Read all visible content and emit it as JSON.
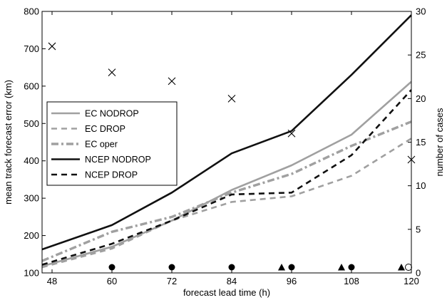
{
  "chart_data": {
    "type": "line",
    "xlabel": "forecast lead time (h)",
    "ylabel": "mean track forecast error (km)",
    "y2label": "number of cases",
    "xlim": [
      46,
      120
    ],
    "ylim": [
      100,
      800
    ],
    "y2lim": [
      0,
      30
    ],
    "x_ticks": [
      48,
      60,
      72,
      84,
      96,
      108,
      120
    ],
    "y_ticks": [
      100,
      200,
      300,
      400,
      500,
      600,
      700,
      800
    ],
    "y2_ticks": [
      0,
      5,
      10,
      15,
      20,
      25,
      30
    ],
    "grid": false,
    "legend": "middle-left",
    "series": [
      {
        "name": "EC NODROP",
        "style": "solid",
        "color": "#a0a0a0",
        "x": [
          46,
          60,
          72,
          84,
          96,
          108,
          120
        ],
        "y": [
          118,
          170,
          240,
          322,
          388,
          470,
          612
        ]
      },
      {
        "name": "EC DROP",
        "style": "dashed",
        "color": "#a0a0a0",
        "x": [
          46,
          60,
          72,
          84,
          96,
          108,
          120
        ],
        "y": [
          115,
          165,
          240,
          290,
          305,
          360,
          460
        ]
      },
      {
        "name": "EC oper",
        "style": "dashdot",
        "color": "#a0a0a0",
        "x": [
          46,
          60,
          72,
          84,
          96,
          108,
          120
        ],
        "y": [
          132,
          210,
          250,
          315,
          365,
          440,
          505
        ]
      },
      {
        "name": "NCEP NODROP",
        "style": "solid",
        "color": "#111111",
        "x": [
          46,
          60,
          72,
          84,
          96,
          108,
          120
        ],
        "y": [
          163,
          228,
          315,
          420,
          480,
          630,
          790
        ]
      },
      {
        "name": "NCEP DROP",
        "style": "dashed",
        "color": "#111111",
        "x": [
          46,
          60,
          72,
          84,
          96,
          108,
          120
        ],
        "y": [
          122,
          178,
          240,
          310,
          315,
          415,
          590
        ]
      }
    ],
    "cases": {
      "axis": "right",
      "x": [
        48,
        60,
        72,
        84,
        96,
        120
      ],
      "y": [
        26,
        23,
        22,
        20,
        16,
        13
      ]
    },
    "markers": {
      "circles": [
        60,
        72,
        84,
        96,
        108
      ],
      "triangles": [
        94,
        106,
        118
      ],
      "open_circle": [
        120
      ]
    }
  }
}
